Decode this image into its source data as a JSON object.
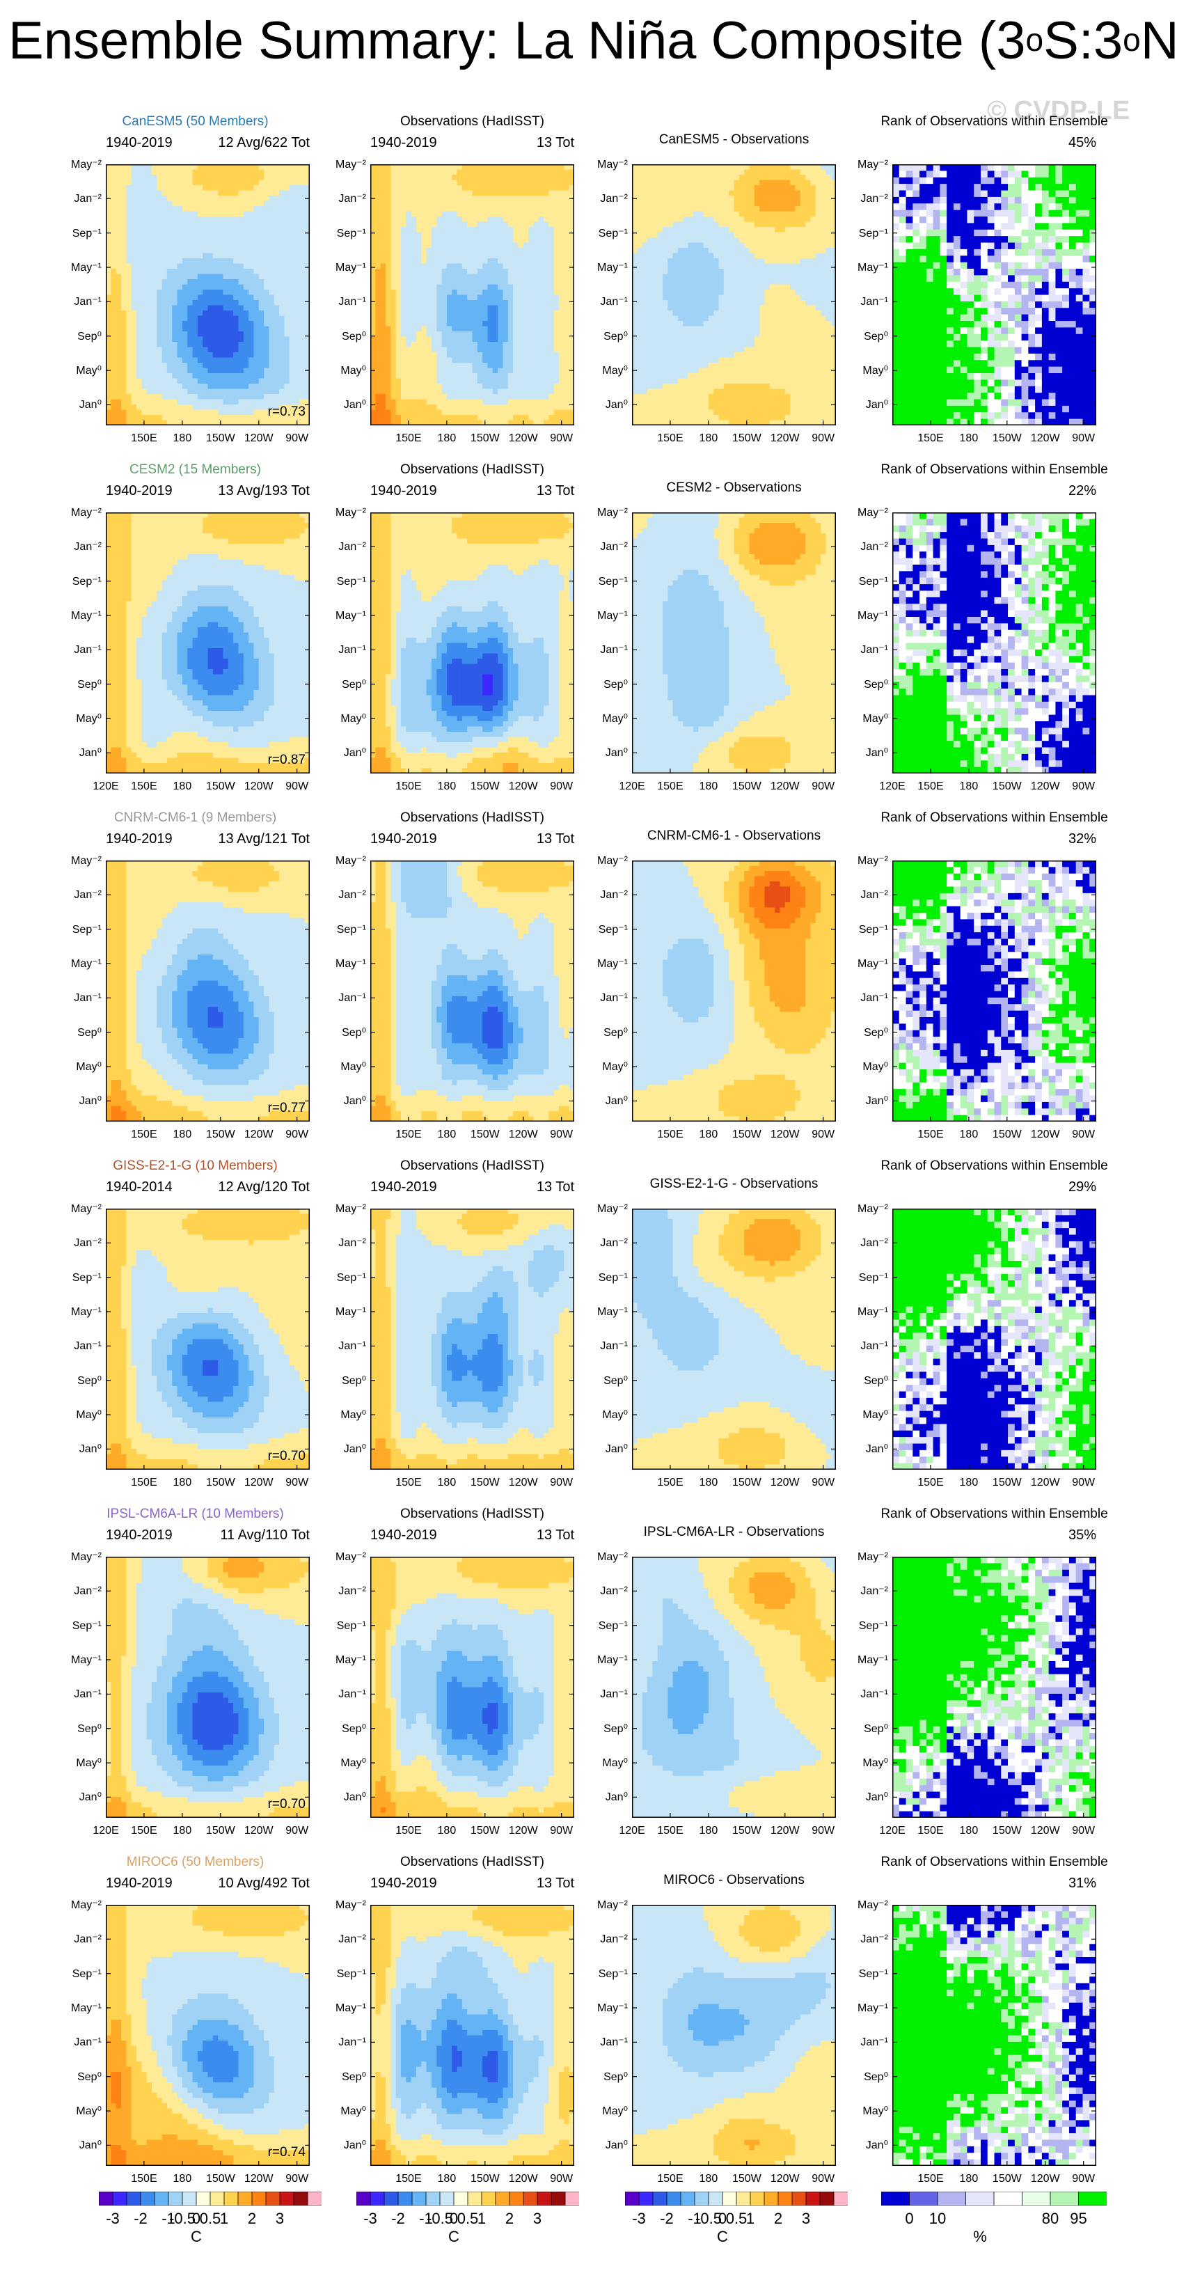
{
  "title": "Ensemble Summary: La Niña Composite (3",
  "title_deg1": "o",
  "title_mid": "S:3",
  "title_deg2": "o",
  "title_end": "N)",
  "watermark": "© CVDP-LE",
  "y_ticks": [
    "May⁻²",
    "Jan⁻²",
    "Sep⁻¹",
    "May⁻¹",
    "Jan⁻¹",
    "Sep⁰",
    "May⁰",
    "Jan⁰"
  ],
  "x_ticks_full": [
    "120E",
    "150E",
    "180",
    "150W",
    "120W",
    "90W"
  ],
  "x_ticks_short": [
    "150E",
    "180",
    "150W",
    "120W",
    "90W"
  ],
  "obs_title": "Observations (HadISST)",
  "rank_title": "Rank of Observations within Ensemble",
  "colors": {
    "model_names": [
      "#2a7bb4",
      "#5d9e6a",
      "#999999",
      "#b0532a",
      "#8a63c9",
      "#d9a366"
    ]
  },
  "chart_data": {
    "type": "heatmap",
    "description_axes": "Hovmöller: longitude (x) vs lag month (y)",
    "xlim_deg_east": [
      120,
      280
    ],
    "rows": [
      {
        "model": "CanESM5 (50 Members)",
        "period": "1940-2019",
        "count": "12 Avg/622 Tot",
        "obs_period": "1940-2019",
        "obs_count": "13 Tot",
        "diff_title": "CanESM5 - Observations",
        "r": "r=0.73",
        "rank_pct": "45%",
        "xaxis": "short"
      },
      {
        "model": "CESM2 (15 Members)",
        "period": "1940-2019",
        "count": "13 Avg/193 Tot",
        "obs_period": "1940-2019",
        "obs_count": "13 Tot",
        "diff_title": "CESM2 - Observations",
        "r": "r=0.87",
        "rank_pct": "22%",
        "xaxis": "full"
      },
      {
        "model": "CNRM-CM6-1 (9 Members)",
        "period": "1940-2019",
        "count": "13 Avg/121 Tot",
        "obs_period": "1940-2019",
        "obs_count": "13 Tot",
        "diff_title": "CNRM-CM6-1 - Observations",
        "r": "r=0.77",
        "rank_pct": "32%",
        "xaxis": "short"
      },
      {
        "model": "GISS-E2-1-G (10 Members)",
        "period": "1940-2014",
        "count": "12 Avg/120 Tot",
        "obs_period": "1940-2019",
        "obs_count": "13 Tot",
        "diff_title": "GISS-E2-1-G - Observations",
        "r": "r=0.70",
        "rank_pct": "29%",
        "xaxis": "short"
      },
      {
        "model": "IPSL-CM6A-LR (10 Members)",
        "period": "1940-2019",
        "count": "11 Avg/110 Tot",
        "obs_period": "1940-2019",
        "obs_count": "13 Tot",
        "diff_title": "IPSL-CM6A-LR - Observations",
        "r": "r=0.70",
        "rank_pct": "35%",
        "xaxis": "full"
      },
      {
        "model": "MIROC6 (50 Members)",
        "period": "1940-2019",
        "count": "10 Avg/492 Tot",
        "obs_period": "1940-2019",
        "obs_count": "13 Tot",
        "diff_title": "MIROC6 - Observations",
        "r": "r=0.74",
        "rank_pct": "31%",
        "xaxis": "short"
      }
    ],
    "colorbar_sst": {
      "labels": [
        "-3",
        "-2",
        "-1",
        "-0.5",
        "0",
        "0.5",
        "1",
        "2",
        "3"
      ],
      "units": "C",
      "colors": [
        "#5a00c8",
        "#3c28ff",
        "#2d5ae6",
        "#3c8cf0",
        "#64b4f5",
        "#a0d2f5",
        "#c8e6f5",
        "#ffffe1",
        "#ffeb96",
        "#ffd250",
        "#ffaa28",
        "#ff8214",
        "#e65014",
        "#c81414",
        "#960a0a",
        "#ffb4c8"
      ]
    },
    "colorbar_rank": {
      "labels": [
        "0",
        "10",
        "80",
        "95"
      ],
      "units": "%",
      "colors": [
        "#0000d2",
        "#6464e6",
        "#b4b4f0",
        "#e6e6fa",
        "#ffffff",
        "#e6ffe6",
        "#b4f5b4",
        "#00f000"
      ]
    }
  }
}
